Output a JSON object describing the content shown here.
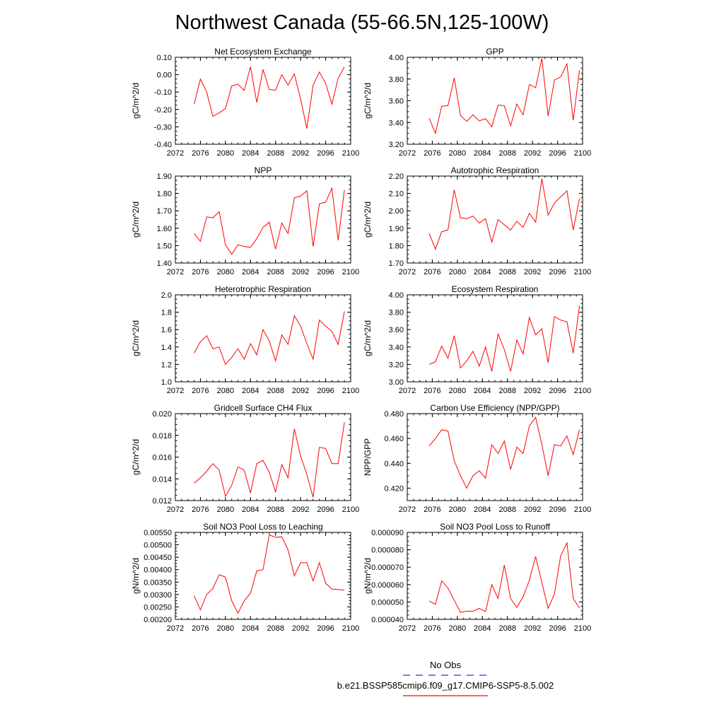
{
  "title": "Northwest Canada (55-66.5N,125-100W)",
  "legend": {
    "obs_label": "No Obs",
    "model_label": "b.e21.BSSP585cmip6.f09_g17.CMIP6-SSP5-8.5.002",
    "obs_color": "#3333cc",
    "model_color": "#ff0000"
  },
  "colors": {
    "line": "#ff0000",
    "axis": "#000000"
  },
  "chart_data": [
    {
      "type": "line",
      "title": "Net Ecosystem Exchange",
      "xlabel": "",
      "ylabel": "gC/m^2/d",
      "xlim": [
        2072,
        2100
      ],
      "ylim": [
        -0.4,
        0.1
      ],
      "xticks": [
        2072,
        2076,
        2080,
        2084,
        2088,
        2092,
        2096,
        2100
      ],
      "yticks": [
        -0.4,
        -0.3,
        -0.2,
        -0.1,
        0.0,
        0.1
      ],
      "ytick_labels": [
        "-0.40",
        "-0.30",
        "-0.20",
        "-0.10",
        "0.00",
        "0.10"
      ],
      "x": [
        2075,
        2076,
        2077,
        2078,
        2079,
        2080,
        2081,
        2082,
        2083,
        2084,
        2085,
        2086,
        2087,
        2088,
        2089,
        2090,
        2091,
        2092,
        2093,
        2094,
        2095,
        2096,
        2097,
        2098,
        2099
      ],
      "series": [
        {
          "values": [
            -0.17,
            -0.025,
            -0.1,
            -0.24,
            -0.22,
            -0.195,
            -0.065,
            -0.055,
            -0.09,
            0.045,
            -0.16,
            0.03,
            -0.085,
            -0.09,
            0.0,
            -0.06,
            0.005,
            -0.14,
            -0.31,
            -0.06,
            0.015,
            -0.05,
            -0.17,
            -0.02,
            0.045
          ]
        }
      ]
    },
    {
      "type": "line",
      "title": "GPP",
      "xlabel": "",
      "ylabel": "gC/m^2/d",
      "xlim": [
        2072,
        2100
      ],
      "ylim": [
        3.2,
        4.0
      ],
      "xticks": [
        2072,
        2076,
        2080,
        2084,
        2088,
        2092,
        2096,
        2100
      ],
      "yticks": [
        3.2,
        3.4,
        3.6,
        3.8,
        4.0
      ],
      "ytick_labels": [
        "3.20",
        "3.40",
        "3.60",
        "3.80",
        "4.00"
      ],
      "x": [
        2075.5,
        2076.5,
        2077.5,
        2078.5,
        2079.5,
        2080.5,
        2081.5,
        2082.5,
        2083.5,
        2084.5,
        2085.5,
        2086.5,
        2087.5,
        2088.5,
        2089.5,
        2090.5,
        2091.5,
        2092.5,
        2093.5,
        2094.5,
        2095.5,
        2096.5,
        2097.5,
        2098.5,
        2099.5
      ],
      "series": [
        {
          "values": [
            3.44,
            3.3,
            3.55,
            3.555,
            3.81,
            3.465,
            3.41,
            3.47,
            3.415,
            3.435,
            3.36,
            3.56,
            3.555,
            3.37,
            3.57,
            3.47,
            3.75,
            3.72,
            3.99,
            3.46,
            3.79,
            3.82,
            3.94,
            3.42,
            3.88
          ]
        }
      ]
    },
    {
      "type": "line",
      "title": "NPP",
      "xlabel": "",
      "ylabel": "gC/m^2/d",
      "xlim": [
        2072,
        2100
      ],
      "ylim": [
        1.4,
        1.9
      ],
      "xticks": [
        2072,
        2076,
        2080,
        2084,
        2088,
        2092,
        2096,
        2100
      ],
      "yticks": [
        1.4,
        1.5,
        1.6,
        1.7,
        1.8,
        1.9
      ],
      "ytick_labels": [
        "1.40",
        "1.50",
        "1.60",
        "1.70",
        "1.80",
        "1.90"
      ],
      "x": [
        2075,
        2076,
        2077,
        2078,
        2079,
        2080,
        2081,
        2082,
        2083,
        2084,
        2085,
        2086,
        2087,
        2088,
        2089,
        2090,
        2091,
        2092,
        2093,
        2094,
        2095,
        2096,
        2097,
        2098,
        2099
      ],
      "series": [
        {
          "values": [
            1.57,
            1.525,
            1.665,
            1.66,
            1.695,
            1.505,
            1.45,
            1.505,
            1.495,
            1.49,
            1.54,
            1.605,
            1.635,
            1.48,
            1.63,
            1.57,
            1.775,
            1.785,
            1.815,
            1.495,
            1.74,
            1.75,
            1.83,
            1.53,
            1.82
          ]
        }
      ]
    },
    {
      "type": "line",
      "title": "Autotrophic Respiration",
      "xlabel": "",
      "ylabel": "gC/m^2/d",
      "xlim": [
        2072,
        2100
      ],
      "ylim": [
        1.7,
        2.2
      ],
      "xticks": [
        2072,
        2076,
        2080,
        2084,
        2088,
        2092,
        2096,
        2100
      ],
      "yticks": [
        1.7,
        1.8,
        1.9,
        2.0,
        2.1,
        2.2
      ],
      "ytick_labels": [
        "1.70",
        "1.80",
        "1.90",
        "2.00",
        "2.10",
        "2.20"
      ],
      "x": [
        2075.5,
        2076.5,
        2077.5,
        2078.5,
        2079.5,
        2080.5,
        2081.5,
        2082.5,
        2083.5,
        2084.5,
        2085.5,
        2086.5,
        2087.5,
        2088.5,
        2089.5,
        2090.5,
        2091.5,
        2092.5,
        2093.5,
        2094.5,
        2095.5,
        2096.5,
        2097.5,
        2098.5,
        2099.5
      ],
      "series": [
        {
          "values": [
            1.87,
            1.78,
            1.88,
            1.89,
            2.12,
            1.96,
            1.955,
            1.97,
            1.93,
            1.955,
            1.82,
            1.95,
            1.92,
            1.89,
            1.94,
            1.905,
            1.985,
            1.935,
            2.185,
            1.975,
            2.045,
            2.08,
            2.115,
            1.89,
            2.07
          ]
        }
      ]
    },
    {
      "type": "line",
      "title": "Heterotrophic Respiration",
      "xlabel": "",
      "ylabel": "gC/m^2/d",
      "xlim": [
        2072,
        2100
      ],
      "ylim": [
        1.0,
        2.0
      ],
      "xticks": [
        2072,
        2076,
        2080,
        2084,
        2088,
        2092,
        2096,
        2100
      ],
      "yticks": [
        1.0,
        1.2,
        1.4,
        1.6,
        1.8,
        2.0
      ],
      "ytick_labels": [
        "1.0",
        "1.2",
        "1.4",
        "1.6",
        "1.8",
        "2.0"
      ],
      "x": [
        2075,
        2076,
        2077,
        2078,
        2079,
        2080,
        2081,
        2082,
        2083,
        2084,
        2085,
        2086,
        2087,
        2088,
        2089,
        2090,
        2091,
        2092,
        2093,
        2094,
        2095,
        2096,
        2097,
        2098,
        2099
      ],
      "series": [
        {
          "values": [
            1.33,
            1.46,
            1.53,
            1.38,
            1.4,
            1.2,
            1.28,
            1.38,
            1.26,
            1.44,
            1.31,
            1.6,
            1.47,
            1.24,
            1.54,
            1.43,
            1.76,
            1.64,
            1.44,
            1.26,
            1.71,
            1.64,
            1.58,
            1.43,
            1.81
          ]
        }
      ]
    },
    {
      "type": "line",
      "title": "Ecosystem Respiration",
      "xlabel": "",
      "ylabel": "gC/m^2/d",
      "xlim": [
        2072,
        2100
      ],
      "ylim": [
        3.0,
        4.0
      ],
      "xticks": [
        2072,
        2076,
        2080,
        2084,
        2088,
        2092,
        2096,
        2100
      ],
      "yticks": [
        3.0,
        3.2,
        3.4,
        3.6,
        3.8,
        4.0
      ],
      "ytick_labels": [
        "3.00",
        "3.20",
        "3.40",
        "3.60",
        "3.80",
        "4.00"
      ],
      "x": [
        2075.5,
        2076.5,
        2077.5,
        2078.5,
        2079.5,
        2080.5,
        2081.5,
        2082.5,
        2083.5,
        2084.5,
        2085.5,
        2086.5,
        2087.5,
        2088.5,
        2089.5,
        2090.5,
        2091.5,
        2092.5,
        2093.5,
        2094.5,
        2095.5,
        2096.5,
        2097.5,
        2098.5,
        2099.5
      ],
      "series": [
        {
          "values": [
            3.2,
            3.23,
            3.41,
            3.27,
            3.53,
            3.16,
            3.24,
            3.35,
            3.18,
            3.4,
            3.12,
            3.55,
            3.37,
            3.12,
            3.48,
            3.32,
            3.74,
            3.54,
            3.61,
            3.22,
            3.75,
            3.71,
            3.69,
            3.33,
            3.87
          ]
        }
      ]
    },
    {
      "type": "line",
      "title": "Gridcell Surface CH4 Flux",
      "xlabel": "",
      "ylabel": "gC/m^2/d",
      "xlim": [
        2072,
        2100
      ],
      "ylim": [
        0.012,
        0.02
      ],
      "xticks": [
        2072,
        2076,
        2080,
        2084,
        2088,
        2092,
        2096,
        2100
      ],
      "yticks": [
        0.012,
        0.014,
        0.016,
        0.018,
        0.02
      ],
      "ytick_labels": [
        "0.012",
        "0.014",
        "0.016",
        "0.018",
        "0.020"
      ],
      "x": [
        2075,
        2076,
        2077,
        2078,
        2079,
        2080,
        2081,
        2082,
        2083,
        2084,
        2085,
        2086,
        2087,
        2088,
        2089,
        2090,
        2091,
        2092,
        2093,
        2094,
        2095,
        2096,
        2097,
        2098,
        2099
      ],
      "series": [
        {
          "values": [
            0.0136,
            0.0141,
            0.0147,
            0.0154,
            0.0148,
            0.0124,
            0.0134,
            0.0151,
            0.0148,
            0.0127,
            0.0154,
            0.0157,
            0.0146,
            0.0128,
            0.0153,
            0.0141,
            0.0186,
            0.0161,
            0.0144,
            0.0123,
            0.0169,
            0.0168,
            0.0154,
            0.0154,
            0.0192
          ]
        }
      ]
    },
    {
      "type": "line",
      "title": "Carbon Use Efficiency (NPP/GPP)",
      "xlabel": "",
      "ylabel": "NPP/GPP",
      "xlim": [
        2072,
        2100
      ],
      "ylim": [
        0.41,
        0.48
      ],
      "xticks": [
        2072,
        2076,
        2080,
        2084,
        2088,
        2092,
        2096,
        2100
      ],
      "yticks": [
        0.42,
        0.44,
        0.46,
        0.48
      ],
      "ytick_labels": [
        "0.420",
        "0.440",
        "0.460",
        "0.480"
      ],
      "x": [
        2075.5,
        2076.5,
        2077.5,
        2078.5,
        2079.5,
        2080.5,
        2081.5,
        2082.5,
        2083.5,
        2084.5,
        2085.5,
        2086.5,
        2087.5,
        2088.5,
        2089.5,
        2090.5,
        2091.5,
        2092.5,
        2093.5,
        2094.5,
        2095.5,
        2096.5,
        2097.5,
        2098.5,
        2099.5
      ],
      "series": [
        {
          "values": [
            0.454,
            0.46,
            0.467,
            0.466,
            0.442,
            0.43,
            0.42,
            0.43,
            0.434,
            0.428,
            0.455,
            0.448,
            0.458,
            0.435,
            0.453,
            0.448,
            0.47,
            0.477,
            0.455,
            0.43,
            0.455,
            0.454,
            0.462,
            0.447,
            0.467
          ]
        }
      ]
    },
    {
      "type": "line",
      "title": "Soil NO3 Pool Loss to Leaching",
      "xlabel": "",
      "ylabel": "gN/m^2/d",
      "xlim": [
        2072,
        2100
      ],
      "ylim": [
        0.002,
        0.0055
      ],
      "xticks": [
        2072,
        2076,
        2080,
        2084,
        2088,
        2092,
        2096,
        2100
      ],
      "yticks": [
        0.002,
        0.0025,
        0.003,
        0.0035,
        0.004,
        0.0045,
        0.005,
        0.0055
      ],
      "ytick_labels": [
        "0.00200",
        "0.00250",
        "0.00300",
        "0.00350",
        "0.00400",
        "0.00450",
        "0.00500",
        "0.00550"
      ],
      "x": [
        2075,
        2076,
        2077,
        2078,
        2079,
        2080,
        2081,
        2082,
        2083,
        2084,
        2085,
        2086,
        2087,
        2088,
        2089,
        2090,
        2091,
        2092,
        2093,
        2094,
        2095,
        2096,
        2097,
        2098,
        2099
      ],
      "series": [
        {
          "values": [
            0.00295,
            0.00238,
            0.003,
            0.00325,
            0.0038,
            0.0037,
            0.00275,
            0.00225,
            0.00275,
            0.00305,
            0.00395,
            0.004,
            0.0054,
            0.0053,
            0.00532,
            0.0048,
            0.00375,
            0.00428,
            0.00428,
            0.00355,
            0.00428,
            0.00345,
            0.00322,
            0.0032,
            0.00318
          ]
        }
      ]
    },
    {
      "type": "line",
      "title": "Soil NO3 Pool Loss to Runoff",
      "xlabel": "",
      "ylabel": "gN/m^2/d",
      "xlim": [
        2072,
        2100
      ],
      "ylim": [
        4e-05,
        9e-05
      ],
      "xticks": [
        2072,
        2076,
        2080,
        2084,
        2088,
        2092,
        2096,
        2100
      ],
      "yticks": [
        4e-05,
        5e-05,
        6e-05,
        7e-05,
        8e-05,
        9e-05
      ],
      "ytick_labels": [
        "0.000040",
        "0.000050",
        "0.000060",
        "0.000070",
        "0.000080",
        "0.000090"
      ],
      "x": [
        2075.5,
        2076.5,
        2077.5,
        2078.5,
        2079.5,
        2080.5,
        2081.5,
        2082.5,
        2083.5,
        2084.5,
        2085.5,
        2086.5,
        2087.5,
        2088.5,
        2089.5,
        2090.5,
        2091.5,
        2092.5,
        2093.5,
        2094.5,
        2095.5,
        2096.5,
        2097.5,
        2098.5,
        2099.5
      ],
      "series": [
        {
          "values": [
            5.05e-05,
            4.87e-05,
            6.22e-05,
            5.8e-05,
            5.1e-05,
            4.4e-05,
            4.47e-05,
            4.47e-05,
            4.63e-05,
            4.45e-05,
            6e-05,
            5.2e-05,
            7.13e-05,
            5.2e-05,
            4.69e-05,
            5.3e-05,
            6.25e-05,
            7.62e-05,
            6.1e-05,
            4.63e-05,
            5.45e-05,
            7.65e-05,
            8.4e-05,
            5.2e-05,
            4.65e-05
          ]
        }
      ]
    }
  ]
}
